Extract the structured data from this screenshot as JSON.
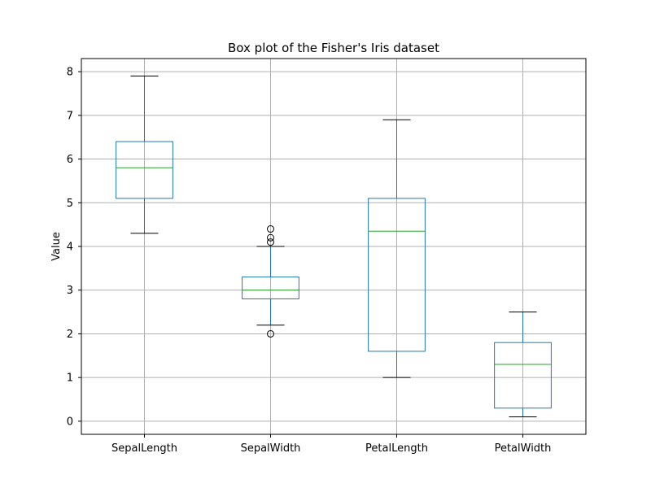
{
  "chart_data": {
    "type": "box",
    "title": "Box plot of the Fisher's Iris dataset",
    "xlabel": "",
    "ylabel": "Value",
    "ylim": [
      -0.3,
      8.3
    ],
    "yticks": [
      0,
      1,
      2,
      3,
      4,
      5,
      6,
      7,
      8
    ],
    "grid": true,
    "colors": {
      "box": "#1f77b4",
      "median": "#2ca02c",
      "whisker_cap": "#000000",
      "grid": "#b0b0b0"
    },
    "categories": [
      "SepalLength",
      "SepalWidth",
      "PetalLength",
      "PetalWidth"
    ],
    "boxes": [
      {
        "category": "SepalLength",
        "whisker_low": 4.3,
        "q1": 5.1,
        "median": 5.8,
        "q3": 6.4,
        "whisker_high": 7.9,
        "outliers": []
      },
      {
        "category": "SepalWidth",
        "whisker_low": 2.2,
        "q1": 2.8,
        "median": 3.0,
        "q3": 3.3,
        "whisker_high": 4.0,
        "outliers": [
          4.4,
          4.1,
          4.2,
          2.0
        ]
      },
      {
        "category": "PetalLength",
        "whisker_low": 1.0,
        "q1": 1.6,
        "median": 4.35,
        "q3": 5.1,
        "whisker_high": 6.9,
        "outliers": []
      },
      {
        "category": "PetalWidth",
        "whisker_low": 0.1,
        "q1": 0.3,
        "median": 1.3,
        "q3": 1.8,
        "whisker_high": 2.5,
        "outliers": []
      }
    ]
  }
}
